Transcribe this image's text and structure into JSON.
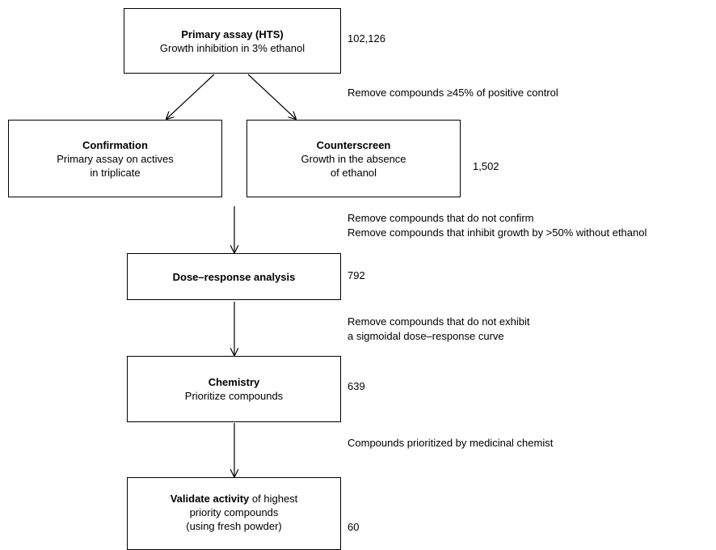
{
  "nodes": [
    {
      "title": "Primary assay (HTS)",
      "lines": [
        "Growth inhibition in 3% ethanol"
      ],
      "count": "102,126"
    },
    {
      "title": "Confirmation",
      "lines": [
        "Primary assay on actives",
        "in triplicate"
      ]
    },
    {
      "title": "Counterscreen",
      "lines": [
        "Growth in the absence",
        "of ethanol"
      ],
      "count": "1,502"
    },
    {
      "title": "Dose–response analysis",
      "lines": [],
      "count": "792"
    },
    {
      "title": "Chemistry",
      "lines": [
        "Prioritize compounds"
      ],
      "count": "639"
    },
    {
      "title": "Validate activity",
      "title_suffix": "of highest",
      "lines": [
        "priority compounds",
        "(using fresh powder)"
      ],
      "count": "60"
    }
  ],
  "filters": [
    {
      "lines": [
        "Remove compounds ≥45% of positive control"
      ]
    },
    {
      "lines": [
        "Remove compounds that do not confirm",
        "Remove compounds that inhibit growth by >50% without ethanol"
      ]
    },
    {
      "lines": [
        "Remove compounds that do not exhibit",
        "a sigmoidal dose–response curve"
      ]
    },
    {
      "lines": [
        "Compounds prioritized by medicinal chemist"
      ]
    }
  ]
}
